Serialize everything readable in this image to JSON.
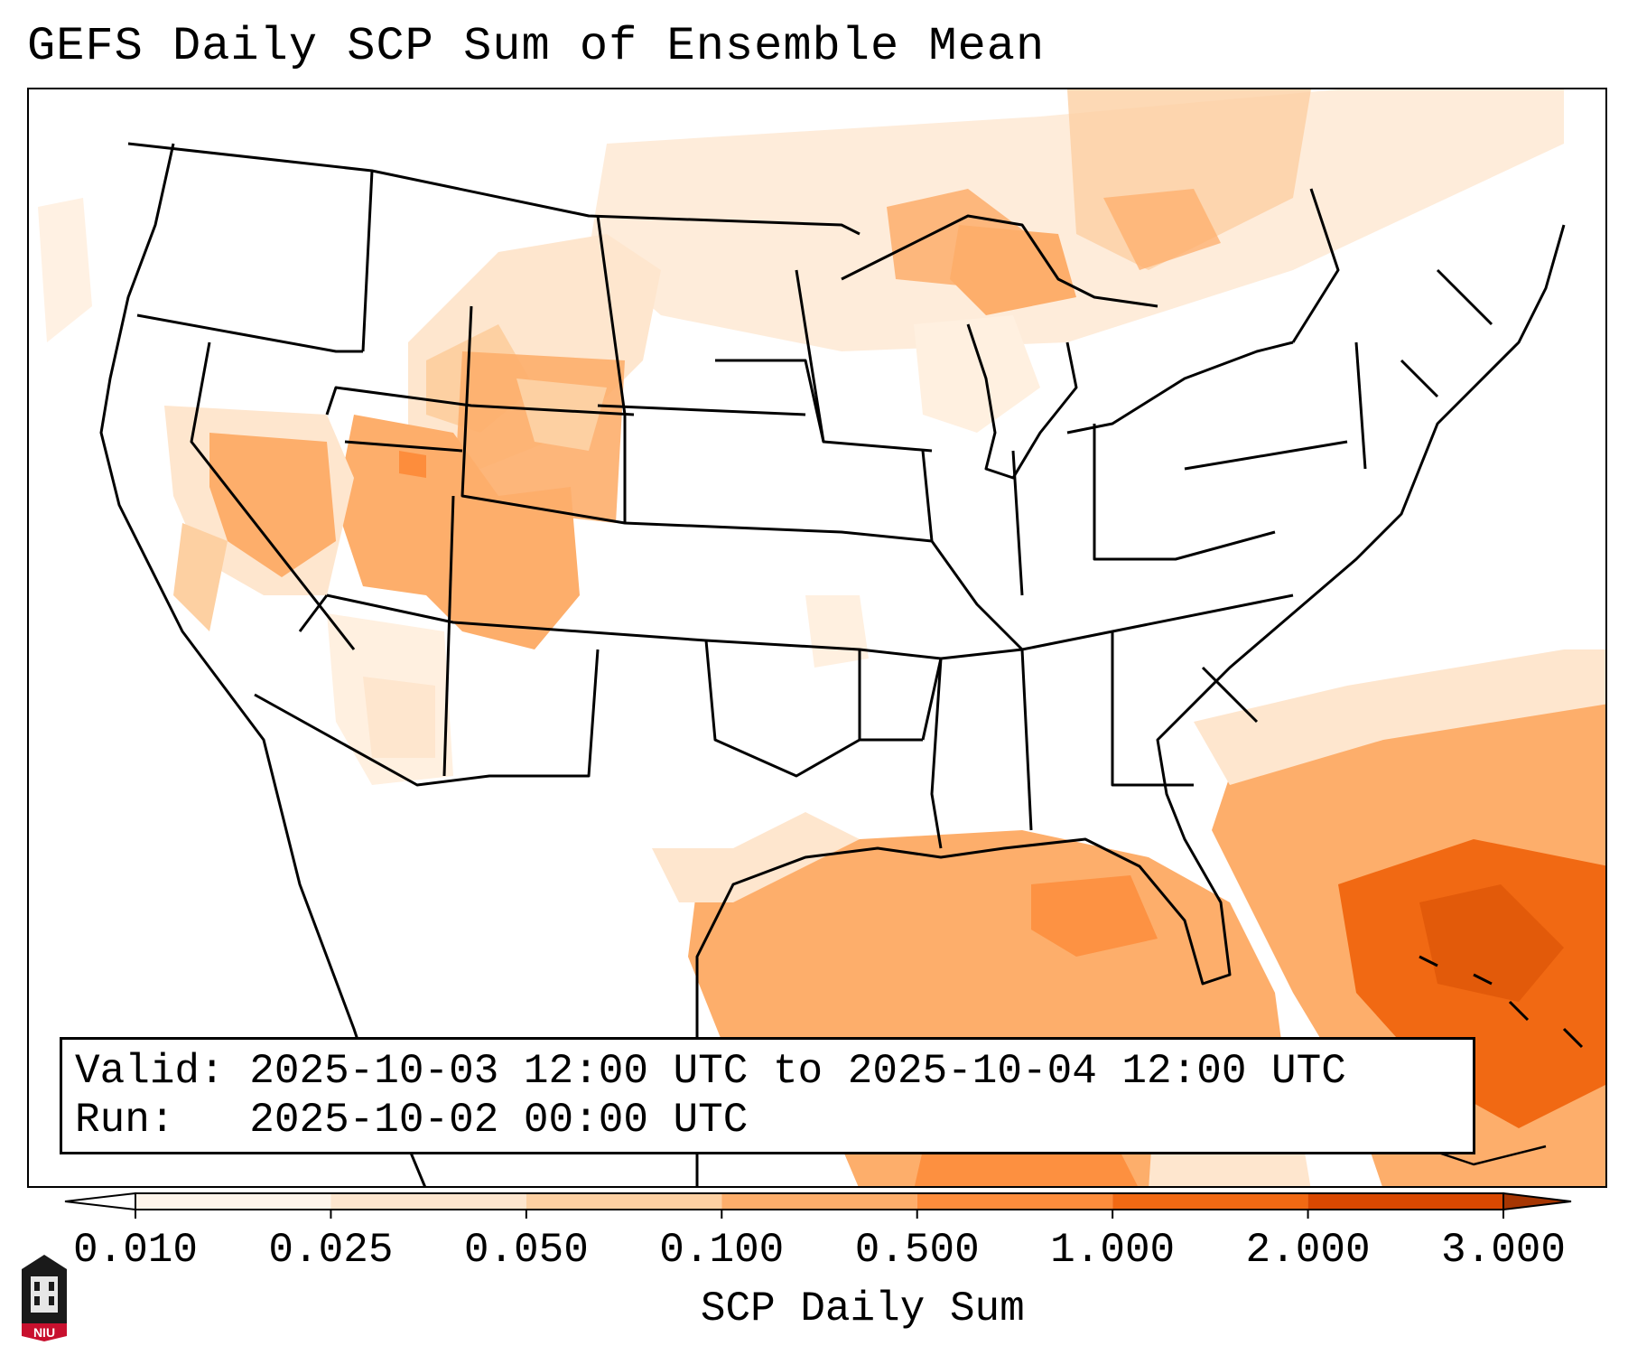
{
  "title": "GEFS Daily SCP Sum of Ensemble Mean",
  "info": {
    "valid_label": "Valid:",
    "valid_value": "2025-10-03 12:00 UTC to 2025-10-04 12:00 UTC",
    "run_label": "Run:",
    "run_value": "2025-10-02 00:00 UTC"
  },
  "colorbar": {
    "title": "SCP Daily Sum",
    "ticks": [
      "0.010",
      "0.025",
      "0.050",
      "0.100",
      "0.500",
      "1.000",
      "2.000",
      "3.000"
    ],
    "colors": [
      "#fff5eb",
      "#fee6ce",
      "#fdd0a2",
      "#fdae6b",
      "#fd8d3c",
      "#f16913",
      "#d94801",
      "#a63603"
    ]
  },
  "logo": {
    "text": "NIU"
  }
}
